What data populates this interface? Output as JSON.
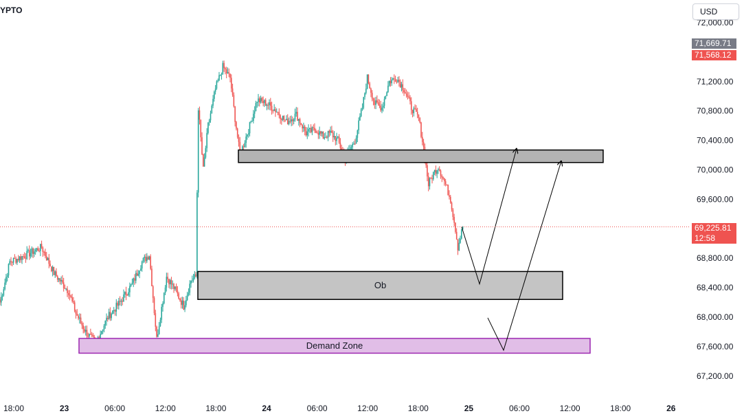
{
  "header": {
    "symbol_fragment": "YPTO",
    "currency_label": "USD"
  },
  "price_tags": {
    "high_label": "71,669.71",
    "ask_label": "71,568.12",
    "current_label": "69,225.81",
    "countdown_label": "12:58"
  },
  "colors": {
    "up": "#26a69a",
    "down": "#ef5350",
    "box_fill": "#bdbdbd",
    "demand_fill": "#e1bee7",
    "demand_border": "#9c27b0",
    "current_line": "#ef5350",
    "tag_gray": "#787b86"
  },
  "chart_data": {
    "type": "candlestick",
    "y_axis": {
      "range": [
        67000,
        72100
      ],
      "ticks": [
        72000,
        71200,
        70800,
        70400,
        70000,
        69600,
        68800,
        68400,
        68000,
        67600,
        67200
      ],
      "tick_labels": [
        "72,000.00",
        "71,200.00",
        "70,800.00",
        "70,400.00",
        "70,000.00",
        "69,600.00",
        "68,800.00",
        "68,400.00",
        "68,000.00",
        "67,600.00",
        "67,200.00"
      ]
    },
    "x_axis": {
      "ticks": [
        "18:00",
        "23",
        "06:00",
        "12:00",
        "18:00",
        "24",
        "06:00",
        "12:00",
        "18:00",
        "25",
        "06:00",
        "12:00",
        "18:00",
        "26"
      ],
      "bold_ticks": [
        "23",
        "24",
        "25",
        "26"
      ]
    },
    "anchors": [
      {
        "i": 0,
        "p": 68200
      },
      {
        "i": 8,
        "p": 68750
      },
      {
        "i": 22,
        "p": 68850
      },
      {
        "i": 34,
        "p": 68950
      },
      {
        "i": 44,
        "p": 68600
      },
      {
        "i": 56,
        "p": 68350
      },
      {
        "i": 62,
        "p": 68050
      },
      {
        "i": 70,
        "p": 67800
      },
      {
        "i": 78,
        "p": 67650
      },
      {
        "i": 88,
        "p": 68000
      },
      {
        "i": 98,
        "p": 68200
      },
      {
        "i": 108,
        "p": 68450
      },
      {
        "i": 116,
        "p": 68750
      },
      {
        "i": 122,
        "p": 68850
      },
      {
        "i": 128,
        "p": 67700
      },
      {
        "i": 136,
        "p": 68550
      },
      {
        "i": 142,
        "p": 68400
      },
      {
        "i": 150,
        "p": 68150
      },
      {
        "i": 156,
        "p": 68500
      },
      {
        "i": 160,
        "p": 68550
      },
      {
        "i": 162,
        "p": 70850
      },
      {
        "i": 166,
        "p": 70000
      },
      {
        "i": 170,
        "p": 70600
      },
      {
        "i": 176,
        "p": 71100
      },
      {
        "i": 182,
        "p": 71400
      },
      {
        "i": 188,
        "p": 71250
      },
      {
        "i": 192,
        "p": 70700
      },
      {
        "i": 196,
        "p": 70200
      },
      {
        "i": 204,
        "p": 70600
      },
      {
        "i": 210,
        "p": 70950
      },
      {
        "i": 218,
        "p": 70900
      },
      {
        "i": 226,
        "p": 70800
      },
      {
        "i": 234,
        "p": 70650
      },
      {
        "i": 242,
        "p": 70750
      },
      {
        "i": 250,
        "p": 70500
      },
      {
        "i": 258,
        "p": 70550
      },
      {
        "i": 264,
        "p": 70450
      },
      {
        "i": 270,
        "p": 70500
      },
      {
        "i": 276,
        "p": 70400
      },
      {
        "i": 282,
        "p": 70150
      },
      {
        "i": 290,
        "p": 70400
      },
      {
        "i": 296,
        "p": 70850
      },
      {
        "i": 300,
        "p": 71250
      },
      {
        "i": 306,
        "p": 70900
      },
      {
        "i": 312,
        "p": 70850
      },
      {
        "i": 318,
        "p": 71200
      },
      {
        "i": 324,
        "p": 71250
      },
      {
        "i": 330,
        "p": 71100
      },
      {
        "i": 336,
        "p": 70850
      },
      {
        "i": 342,
        "p": 70700
      },
      {
        "i": 346,
        "p": 70300
      },
      {
        "i": 350,
        "p": 69800
      },
      {
        "i": 354,
        "p": 69950
      },
      {
        "i": 358,
        "p": 70050
      },
      {
        "i": 364,
        "p": 69800
      },
      {
        "i": 368,
        "p": 69600
      },
      {
        "i": 372,
        "p": 69200
      },
      {
        "i": 374,
        "p": 68950
      },
      {
        "i": 378,
        "p": 69225
      }
    ],
    "annotations": [
      {
        "label": "",
        "x_from": 347,
        "x_to": 878,
        "y_high": 70270,
        "y_low": 70100,
        "fill": "#b3b3b3",
        "border": "#000000"
      },
      {
        "label": "Ob",
        "x_from": 288,
        "x_to": 819,
        "y_high": 68620,
        "y_low": 68240,
        "fill": "#c4c4c4",
        "border": "#000000"
      },
      {
        "label": "Demand Zone",
        "x_from": 115,
        "x_to": 859,
        "y_high": 67710,
        "y_low": 67510,
        "fill": "#e1bee7",
        "border": "#9c27b0"
      }
    ],
    "projection_arrows": [
      {
        "points": [
          [
            672,
            69225
          ],
          [
            698,
            68450
          ],
          [
            752,
            70290
          ]
        ]
      },
      {
        "points": [
          [
            710,
            67990
          ],
          [
            733,
            67550
          ],
          [
            817,
            70120
          ]
        ]
      }
    ],
    "current_price": 69225.81
  }
}
